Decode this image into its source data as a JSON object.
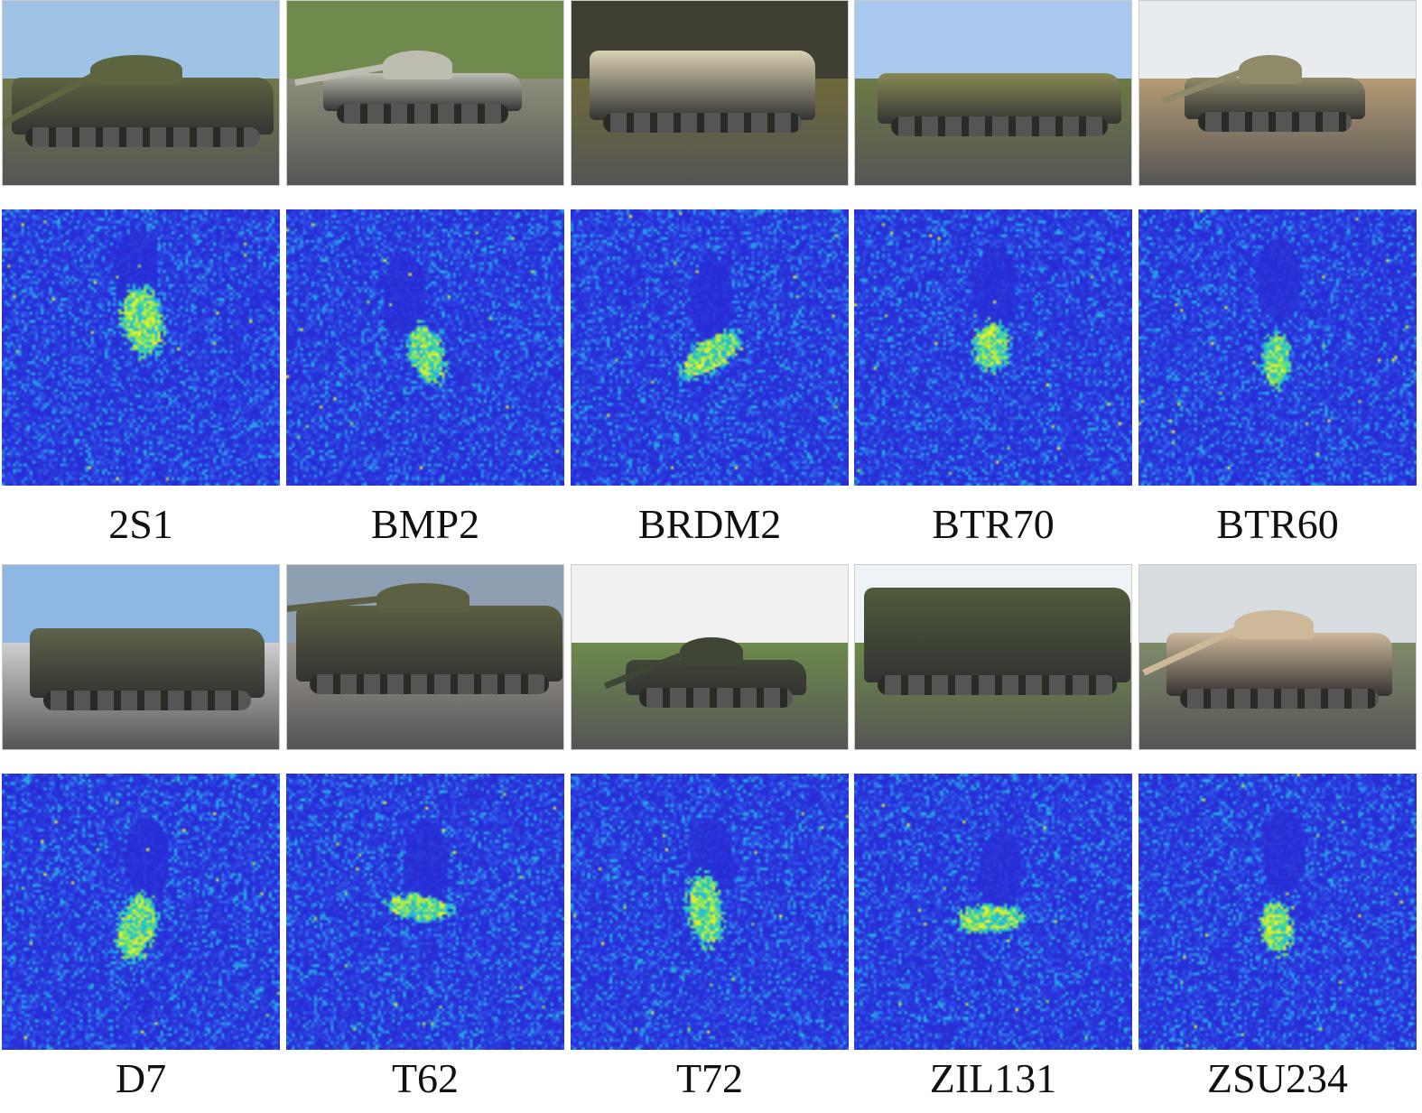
{
  "figure": {
    "rows": [
      {
        "classes": [
          {
            "label": "2S1"
          },
          {
            "label": "BMP2"
          },
          {
            "label": "BRDM2"
          },
          {
            "label": "BTR70"
          },
          {
            "label": "BTR60"
          }
        ]
      },
      {
        "classes": [
          {
            "label": "D7"
          },
          {
            "label": "T62"
          },
          {
            "label": "T72"
          },
          {
            "label": "ZIL131"
          },
          {
            "label": "ZSU234"
          }
        ]
      }
    ],
    "colormap": {
      "low": "#2b2fd6",
      "mid": "#22c7c9",
      "high": "#f5f523"
    }
  }
}
